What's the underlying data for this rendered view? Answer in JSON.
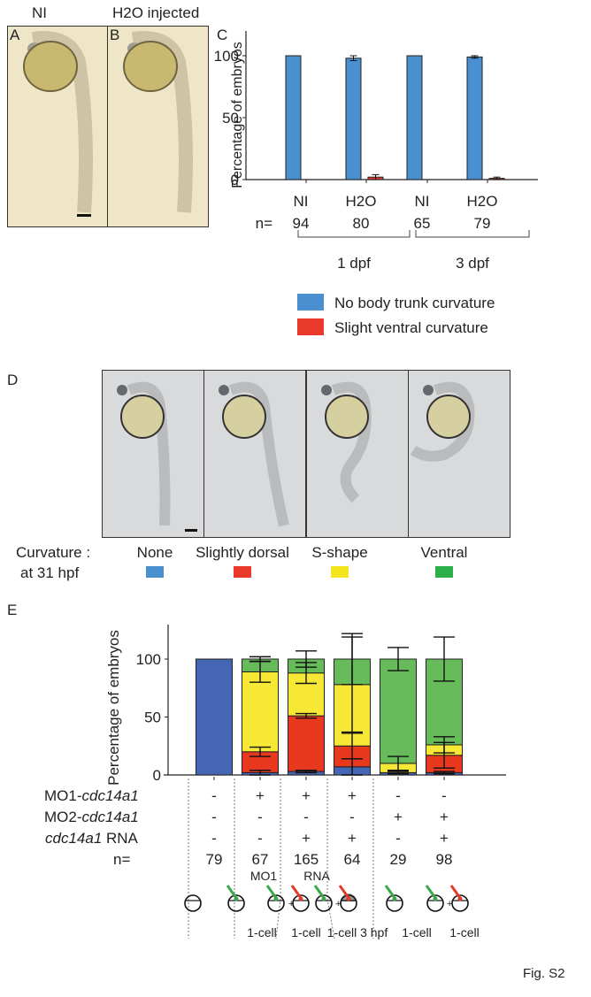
{
  "figure_label": "Fig. S2",
  "panelA": {
    "letter": "A",
    "title": "NI"
  },
  "panelB": {
    "letter": "B",
    "title": "H2O injected"
  },
  "panelC": {
    "letter": "C"
  },
  "panelD": {
    "letter": "D",
    "row_label_1": "Curvature :",
    "row_label_2": "at 31 hpf",
    "classes": [
      {
        "label": "None",
        "color": "#4a90d0"
      },
      {
        "label": "Slightly dorsal",
        "color": "#e8392a"
      },
      {
        "label": "S-shape",
        "color": "#f5e51d"
      },
      {
        "label": "Ventral",
        "color": "#2bb04a"
      }
    ]
  },
  "panelE": {
    "letter": "E",
    "row_labels": {
      "mo1_prefix": "MO1-",
      "mo1_gene": "cdc14a1",
      "mo2_prefix": "MO2-",
      "mo2_gene": "cdc14a1",
      "rna_gene": "cdc14a1",
      "rna_suffix": " RNA",
      "n": "n="
    },
    "mo1": [
      "-",
      "+",
      "+",
      "+",
      "-",
      "-"
    ],
    "mo2": [
      "-",
      "-",
      "-",
      "-",
      "+",
      "+"
    ],
    "rna": [
      "-",
      "-",
      "+",
      "+",
      "-",
      "+"
    ],
    "n": [
      "79",
      "67",
      "165",
      "64",
      "29",
      "98"
    ],
    "injection_notes": {
      "mo1": "MO1",
      "rna": "RNA"
    },
    "stages": [
      "1-cell",
      "1-cell",
      "1-cell 3 hpf",
      "1-cell",
      "1-cell"
    ]
  },
  "chart_data": [
    {
      "type": "bar",
      "panel": "C",
      "title": "",
      "ylabel": "Percentage of embryos",
      "ylim": [
        0,
        120
      ],
      "yticks": [
        0,
        50,
        100
      ],
      "categories": [
        "NI",
        "H2O",
        "NI",
        "H2O"
      ],
      "n_label": "n=",
      "n": [
        "94",
        "80",
        "65",
        "79"
      ],
      "groups": [
        {
          "label": "1 dpf",
          "categories": [
            0,
            1
          ]
        },
        {
          "label": "3 dpf",
          "categories": [
            2,
            3
          ]
        }
      ],
      "series": [
        {
          "name": "No body trunk curvature",
          "color": "#4a90d0",
          "values": [
            100,
            98,
            100,
            99
          ],
          "errors": [
            0,
            2,
            0,
            1
          ]
        },
        {
          "name": "Slight ventral curvature",
          "color": "#e8392a",
          "values": [
            0,
            2,
            0,
            1
          ],
          "errors": [
            0,
            2,
            0,
            1
          ]
        }
      ],
      "legend": "bottom"
    },
    {
      "type": "bar",
      "stacked": true,
      "panel": "E",
      "title": "",
      "ylabel": "Percentage of embryos",
      "ylim": [
        0,
        125
      ],
      "yticks": [
        0,
        50,
        100
      ],
      "categories": [
        "1",
        "2",
        "3",
        "4",
        "5",
        "6"
      ],
      "series": [
        {
          "name": "None",
          "color": "#4466b4",
          "values": [
            100,
            2,
            3,
            7,
            2,
            2
          ],
          "errors": [
            0,
            2,
            1,
            7,
            1,
            1
          ]
        },
        {
          "name": "Slightly dorsal",
          "color": "#e8391f",
          "values": [
            0,
            18,
            48,
            18,
            0,
            15
          ],
          "errors": [
            0,
            4,
            2,
            11,
            0,
            11
          ]
        },
        {
          "name": "S-shape",
          "color": "#f8e836",
          "values": [
            0,
            69,
            37,
            53,
            8,
            9
          ],
          "errors": [
            0,
            9,
            9,
            41,
            6,
            7
          ]
        },
        {
          "name": "Ventral",
          "color": "#68bb5a",
          "values": [
            0,
            11,
            12,
            22,
            90,
            74
          ],
          "errors": [
            0,
            2,
            7,
            22,
            10,
            19
          ]
        }
      ]
    }
  ]
}
